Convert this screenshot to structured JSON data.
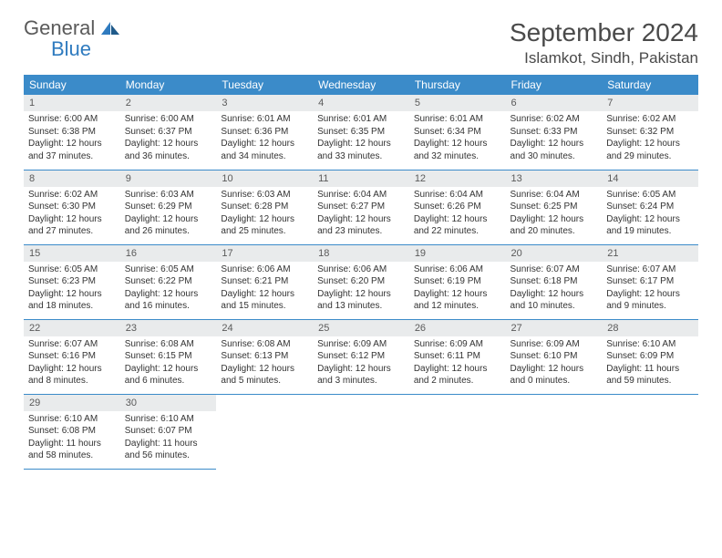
{
  "logo": {
    "text1": "General",
    "text2": "Blue"
  },
  "title": "September 2024",
  "location": "Islamkot, Sindh, Pakistan",
  "colors": {
    "header_bg": "#3b8bc9",
    "header_text": "#ffffff",
    "daynum_bg": "#e9ebec",
    "daynum_text": "#5a5a5a",
    "border": "#3b8bc9",
    "logo_gray": "#5a5a5a",
    "logo_blue": "#2f7bbf"
  },
  "weekdays": [
    "Sunday",
    "Monday",
    "Tuesday",
    "Wednesday",
    "Thursday",
    "Friday",
    "Saturday"
  ],
  "days": [
    {
      "n": "1",
      "sr": "6:00 AM",
      "ss": "6:38 PM",
      "dl": "12 hours and 37 minutes."
    },
    {
      "n": "2",
      "sr": "6:00 AM",
      "ss": "6:37 PM",
      "dl": "12 hours and 36 minutes."
    },
    {
      "n": "3",
      "sr": "6:01 AM",
      "ss": "6:36 PM",
      "dl": "12 hours and 34 minutes."
    },
    {
      "n": "4",
      "sr": "6:01 AM",
      "ss": "6:35 PM",
      "dl": "12 hours and 33 minutes."
    },
    {
      "n": "5",
      "sr": "6:01 AM",
      "ss": "6:34 PM",
      "dl": "12 hours and 32 minutes."
    },
    {
      "n": "6",
      "sr": "6:02 AM",
      "ss": "6:33 PM",
      "dl": "12 hours and 30 minutes."
    },
    {
      "n": "7",
      "sr": "6:02 AM",
      "ss": "6:32 PM",
      "dl": "12 hours and 29 minutes."
    },
    {
      "n": "8",
      "sr": "6:02 AM",
      "ss": "6:30 PM",
      "dl": "12 hours and 27 minutes."
    },
    {
      "n": "9",
      "sr": "6:03 AM",
      "ss": "6:29 PM",
      "dl": "12 hours and 26 minutes."
    },
    {
      "n": "10",
      "sr": "6:03 AM",
      "ss": "6:28 PM",
      "dl": "12 hours and 25 minutes."
    },
    {
      "n": "11",
      "sr": "6:04 AM",
      "ss": "6:27 PM",
      "dl": "12 hours and 23 minutes."
    },
    {
      "n": "12",
      "sr": "6:04 AM",
      "ss": "6:26 PM",
      "dl": "12 hours and 22 minutes."
    },
    {
      "n": "13",
      "sr": "6:04 AM",
      "ss": "6:25 PM",
      "dl": "12 hours and 20 minutes."
    },
    {
      "n": "14",
      "sr": "6:05 AM",
      "ss": "6:24 PM",
      "dl": "12 hours and 19 minutes."
    },
    {
      "n": "15",
      "sr": "6:05 AM",
      "ss": "6:23 PM",
      "dl": "12 hours and 18 minutes."
    },
    {
      "n": "16",
      "sr": "6:05 AM",
      "ss": "6:22 PM",
      "dl": "12 hours and 16 minutes."
    },
    {
      "n": "17",
      "sr": "6:06 AM",
      "ss": "6:21 PM",
      "dl": "12 hours and 15 minutes."
    },
    {
      "n": "18",
      "sr": "6:06 AM",
      "ss": "6:20 PM",
      "dl": "12 hours and 13 minutes."
    },
    {
      "n": "19",
      "sr": "6:06 AM",
      "ss": "6:19 PM",
      "dl": "12 hours and 12 minutes."
    },
    {
      "n": "20",
      "sr": "6:07 AM",
      "ss": "6:18 PM",
      "dl": "12 hours and 10 minutes."
    },
    {
      "n": "21",
      "sr": "6:07 AM",
      "ss": "6:17 PM",
      "dl": "12 hours and 9 minutes."
    },
    {
      "n": "22",
      "sr": "6:07 AM",
      "ss": "6:16 PM",
      "dl": "12 hours and 8 minutes."
    },
    {
      "n": "23",
      "sr": "6:08 AM",
      "ss": "6:15 PM",
      "dl": "12 hours and 6 minutes."
    },
    {
      "n": "24",
      "sr": "6:08 AM",
      "ss": "6:13 PM",
      "dl": "12 hours and 5 minutes."
    },
    {
      "n": "25",
      "sr": "6:09 AM",
      "ss": "6:12 PM",
      "dl": "12 hours and 3 minutes."
    },
    {
      "n": "26",
      "sr": "6:09 AM",
      "ss": "6:11 PM",
      "dl": "12 hours and 2 minutes."
    },
    {
      "n": "27",
      "sr": "6:09 AM",
      "ss": "6:10 PM",
      "dl": "12 hours and 0 minutes."
    },
    {
      "n": "28",
      "sr": "6:10 AM",
      "ss": "6:09 PM",
      "dl": "11 hours and 59 minutes."
    },
    {
      "n": "29",
      "sr": "6:10 AM",
      "ss": "6:08 PM",
      "dl": "11 hours and 58 minutes."
    },
    {
      "n": "30",
      "sr": "6:10 AM",
      "ss": "6:07 PM",
      "dl": "11 hours and 56 minutes."
    }
  ],
  "labels": {
    "sunrise": "Sunrise: ",
    "sunset": "Sunset: ",
    "daylight": "Daylight: "
  }
}
